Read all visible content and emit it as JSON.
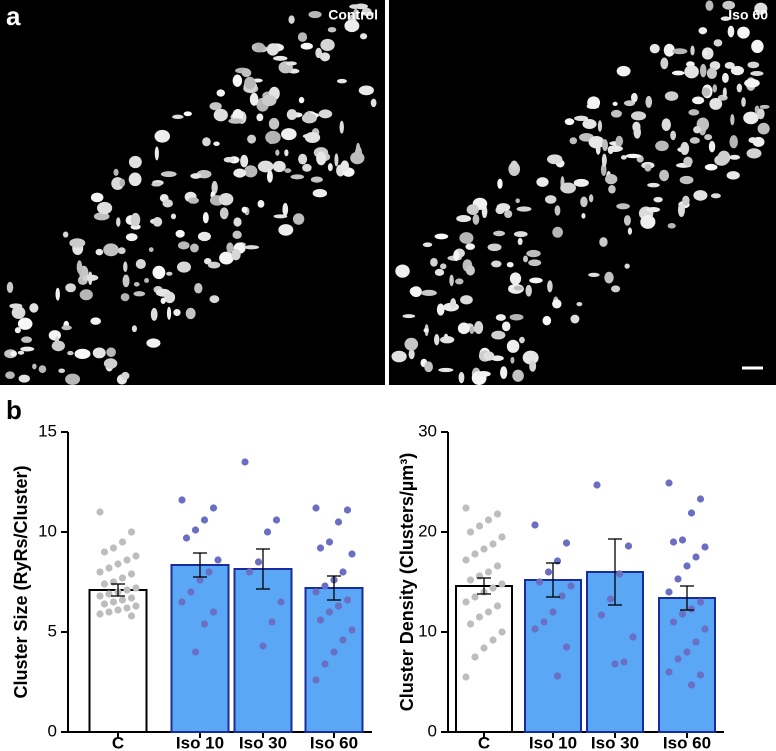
{
  "figure": {
    "panel_a": "a",
    "panel_b": "b",
    "image_left_label": "Control",
    "image_right_label": "Iso 60"
  },
  "chart_data": [
    {
      "type": "bar",
      "y_label": "Cluster Size (RyRs/Cluster)",
      "categories": [
        "C",
        "Iso 10",
        "Iso 30",
        "Iso 60"
      ],
      "values": [
        7.1,
        8.35,
        8.15,
        7.2
      ],
      "errors": [
        0.3,
        0.6,
        1.0,
        0.6
      ],
      "colors": [
        "#ffffff",
        "#5aa7f5",
        "#5aa7f5",
        "#5aa7f5"
      ],
      "point_colors": [
        "#bdbdbd",
        "#6a6fc4",
        "#6a6fc4",
        "#6a6fc4"
      ],
      "points": [
        [
          11.0,
          10.0,
          9.5,
          9.2,
          9.0,
          8.8,
          8.6,
          8.4,
          8.2,
          8.0,
          7.9,
          7.7,
          7.5,
          7.4,
          7.2,
          7.1,
          7.0,
          6.9,
          6.8,
          6.7,
          6.6,
          6.5,
          6.4,
          6.3,
          6.2,
          6.1,
          6.0,
          5.9,
          5.8
        ],
        [
          11.6,
          11.2,
          10.6,
          10.1,
          9.7,
          8.6,
          8.0,
          7.6,
          7.0,
          6.5,
          6.0,
          5.4,
          4.0
        ],
        [
          13.5,
          10.6,
          10.0,
          8.5,
          8.0,
          6.5,
          5.5,
          4.3
        ],
        [
          11.2,
          11.1,
          10.5,
          9.5,
          9.2,
          8.9,
          8.0,
          7.6,
          7.3,
          7.0,
          6.6,
          6.3,
          6.0,
          5.6,
          5.1,
          4.6,
          4.0,
          3.4,
          2.6
        ]
      ],
      "ylim": [
        0,
        15
      ],
      "yticks": [
        0,
        5,
        10,
        15
      ]
    },
    {
      "type": "bar",
      "y_label": "Cluster Density (Clusters/µm³)",
      "categories": [
        "C",
        "Iso 10",
        "Iso 30",
        "Iso 60"
      ],
      "values": [
        14.6,
        15.2,
        16.0,
        13.4
      ],
      "errors": [
        0.8,
        1.7,
        3.3,
        1.2
      ],
      "colors": [
        "#ffffff",
        "#5aa7f5",
        "#5aa7f5",
        "#5aa7f5"
      ],
      "point_colors": [
        "#bdbdbd",
        "#6a6fc4",
        "#6a6fc4",
        "#6a6fc4"
      ],
      "points": [
        [
          22.4,
          21.8,
          21.2,
          20.6,
          20.0,
          19.5,
          18.8,
          18.3,
          17.8,
          17.2,
          16.6,
          16.0,
          15.6,
          15.2,
          14.8,
          14.4,
          14.0,
          13.5,
          13.0,
          12.6,
          12.0,
          11.5,
          10.8,
          10.0,
          9.2,
          8.4,
          7.5,
          5.5
        ],
        [
          20.7,
          18.9,
          17.1,
          16.0,
          15.0,
          14.6,
          13.6,
          12.0,
          11.0,
          10.3,
          8.5,
          5.6
        ],
        [
          24.7,
          18.6,
          15.8,
          13.3,
          11.7,
          9.5,
          7.0,
          6.8
        ],
        [
          24.9,
          23.3,
          21.9,
          19.2,
          19.0,
          18.5,
          17.5,
          16.6,
          15.3,
          14.0,
          13.0,
          12.3,
          11.8,
          11.0,
          10.3,
          9.0,
          8.0,
          7.3,
          6.0,
          5.7,
          4.7
        ]
      ],
      "ylim": [
        0,
        30
      ],
      "yticks": [
        0,
        10,
        20,
        30
      ]
    }
  ]
}
